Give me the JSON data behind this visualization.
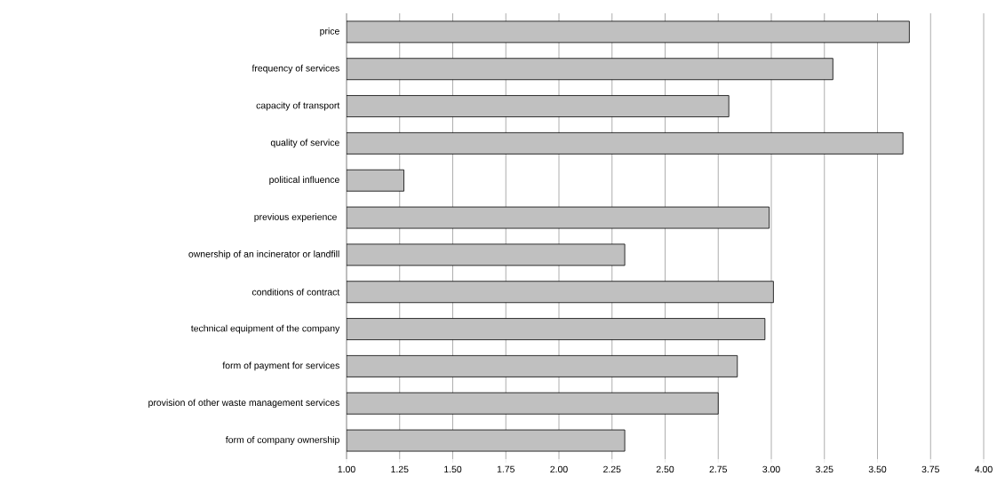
{
  "chart_data": {
    "type": "bar",
    "orientation": "horizontal",
    "color": "#c0c0c0",
    "categories": [
      "price",
      "frequency of services",
      "capacity of transport",
      "quality of service",
      "political influence",
      "previous experience ",
      "ownership of an incinerator or landfill",
      "conditions of contract",
      "technical equipment of the company",
      "form of payment for services",
      "provision of other waste management services",
      "form of company ownership"
    ],
    "values": [
      3.65,
      3.29,
      2.8,
      3.62,
      1.27,
      2.99,
      2.31,
      3.01,
      2.97,
      2.84,
      2.75,
      2.31
    ],
    "xlim": [
      1,
      4
    ],
    "xticks": [
      {
        "value": 1,
        "label": "1.00"
      },
      {
        "value": 1.25,
        "label": "1.25"
      },
      {
        "value": 1.5,
        "label": "1.50"
      },
      {
        "value": 1.75,
        "label": "1.75"
      },
      {
        "value": 2,
        "label": "2.00"
      },
      {
        "value": 2.25,
        "label": "2.25"
      },
      {
        "value": 2.5,
        "label": "2.50"
      },
      {
        "value": 2.75,
        "label": "2.75"
      },
      {
        "value": 3,
        "label": "3.00"
      },
      {
        "value": 3.25,
        "label": "3.25"
      },
      {
        "value": 3.5,
        "label": "3.50"
      },
      {
        "value": 3.75,
        "label": "3.75"
      },
      {
        "value": 4,
        "label": "4.00"
      }
    ],
    "grid": "x"
  }
}
